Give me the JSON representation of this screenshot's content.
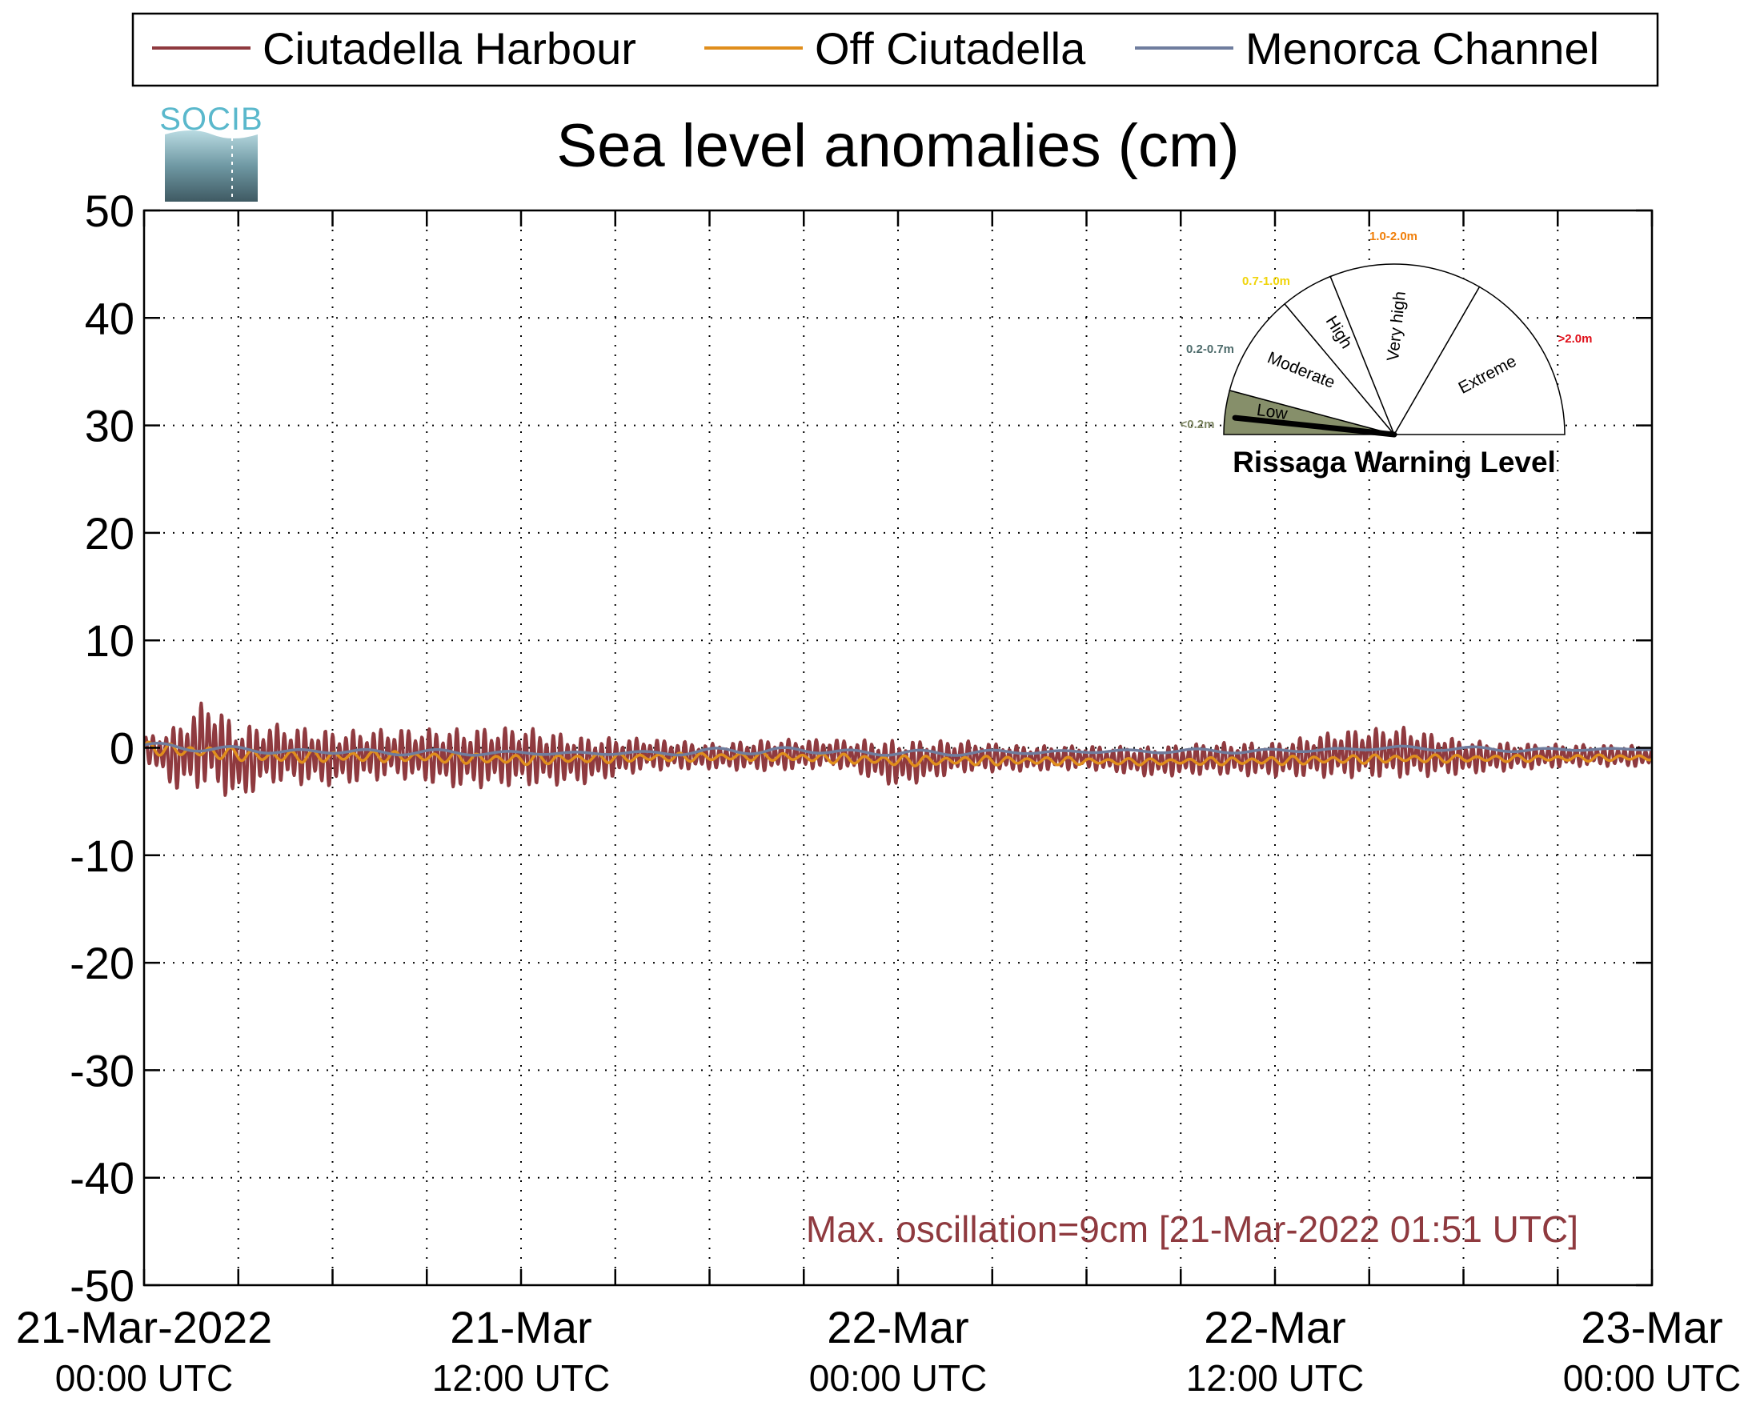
{
  "chart_data": {
    "type": "line",
    "title": "Sea level anomalies (cm)",
    "xlabel": "",
    "ylabel": "",
    "ylim": [
      -50,
      50
    ],
    "xlim_hours": [
      0,
      48
    ],
    "y_ticks": [
      "50",
      "40",
      "30",
      "20",
      "10",
      "0",
      "-10",
      "-20",
      "-30",
      "-40",
      "-50"
    ],
    "x_ticks": [
      {
        "line1": "21-Mar-2022",
        "line2": "00:00 UTC"
      },
      {
        "line1": "21-Mar",
        "line2": "12:00 UTC"
      },
      {
        "line1": "22-Mar",
        "line2": "00:00 UTC"
      },
      {
        "line1": "22-Mar",
        "line2": "12:00 UTC"
      },
      {
        "line1": "23-Mar",
        "line2": "00:00 UTC"
      }
    ],
    "grid": true,
    "legend_position": "top",
    "series": [
      {
        "name": "Ciutadella Harbour",
        "color": "#8f3a3f",
        "x": [
          0,
          1,
          2,
          3,
          4,
          6,
          8,
          10,
          12,
          14,
          16,
          18,
          20,
          22,
          24,
          26,
          28,
          30,
          32,
          34,
          36,
          38,
          40,
          42,
          44,
          46,
          48
        ],
        "y": [
          0,
          -1,
          0.5,
          -1.5,
          -0.5,
          -1,
          -0.5,
          -1,
          -0.8,
          -1.2,
          -0.6,
          -0.8,
          -0.7,
          -0.5,
          -1.5,
          -0.8,
          -1,
          -0.9,
          -1.3,
          -1,
          -1.1,
          -0.6,
          -0.4,
          -0.9,
          -0.8,
          -0.7,
          -0.8
        ],
        "amplitude": [
          1,
          3,
          4.2,
          3.5,
          2.8,
          2.6,
          2.3,
          2.8,
          2.8,
          2.2,
          1.5,
          1.2,
          1.5,
          1.3,
          2.2,
          1.5,
          1.2,
          1.1,
          1.4,
          1.5,
          1.6,
          2.2,
          2.4,
          1.6,
          1.2,
          1,
          1
        ],
        "max_oscillation_cm": 9
      },
      {
        "name": "Off Ciutadella",
        "color": "#e08e1c",
        "x": [
          0,
          4,
          8,
          12,
          16,
          20,
          24,
          28,
          32,
          36,
          40,
          44,
          48
        ],
        "y": [
          0,
          -0.8,
          -0.8,
          -1.1,
          -0.9,
          -0.8,
          -1.2,
          -1.2,
          -1.3,
          -1.2,
          -1,
          -1,
          -0.9
        ],
        "amplitude": [
          0.6,
          0.6,
          0.5,
          0.5,
          0.4,
          0.4,
          0.5,
          0.4,
          0.3,
          0.4,
          0.4,
          0.3,
          0.3
        ]
      },
      {
        "name": "Menorca Channel",
        "color": "#6f7d9e",
        "x": [
          0,
          4,
          8,
          12,
          16,
          20,
          24,
          28,
          32,
          36,
          40,
          44,
          48
        ],
        "y": [
          0.2,
          -0.3,
          -0.4,
          -0.5,
          -0.5,
          -0.2,
          -0.5,
          -0.4,
          -0.3,
          -0.3,
          0,
          -0.2,
          -0.1
        ],
        "amplitude": [
          0.3,
          0.3,
          0.3,
          0.2,
          0.2,
          0.4,
          0.3,
          0.2,
          0.2,
          0.2,
          0.2,
          0.2,
          0.1
        ]
      }
    ],
    "annotation": {
      "text": "Max. oscillation=9cm [21-Mar-2022 01:51 UTC]",
      "color": "#8f3a3f"
    }
  },
  "logo": {
    "text": "SOCIB"
  },
  "gauge": {
    "title": "Rissaga Warning Level",
    "current_level": "Low",
    "segments": [
      {
        "label": "Low",
        "range": "<0.2m",
        "range_color": "#7c8561",
        "fill": "#868f6a"
      },
      {
        "label": "Moderate",
        "range": "0.2-0.7m",
        "range_color": "#4d6b6b",
        "fill": "#ffffff"
      },
      {
        "label": "High",
        "range": "0.7-1.0m",
        "range_color": "#f0d40a",
        "fill": "#ffffff"
      },
      {
        "label": "Very high",
        "range": "1.0-2.0m",
        "range_color": "#f07f0a",
        "fill": "#ffffff"
      },
      {
        "label": "Extreme",
        "range": ">2.0m",
        "range_color": "#e0101a",
        "fill": "#ffffff"
      }
    ]
  }
}
